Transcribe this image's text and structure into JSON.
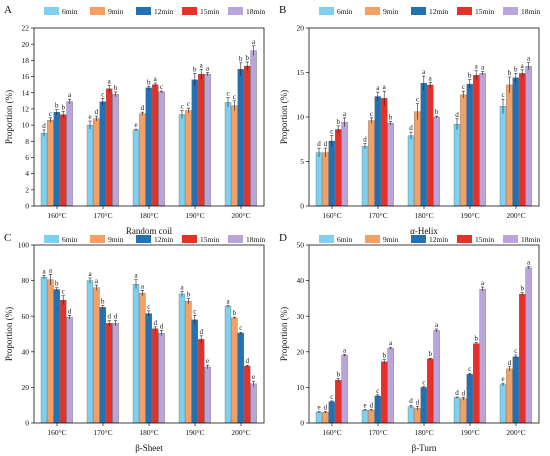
{
  "colors": {
    "6min": "#7fd0ee",
    "9min": "#f4a064",
    "12min": "#2370b3",
    "15min": "#e8302a",
    "18min": "#b9a4dc"
  },
  "chart_data": [
    {
      "type": "bar",
      "panel_label": "A",
      "xlabel": "Random coil",
      "ylabel": "Proportion (%)",
      "ylim": [
        0,
        22
      ],
      "yticks": [
        "0",
        "2",
        "4",
        "6",
        "8",
        "10",
        "12",
        "14",
        "16",
        "18",
        "20",
        "22"
      ],
      "categories": [
        "160°C",
        "170°C",
        "180°C",
        "190°C",
        "200°C"
      ],
      "legend_position": "top",
      "series": [
        {
          "name": "6min",
          "values": [
            9.0,
            10.0,
            9.4,
            11.3,
            12.8
          ],
          "errors": [
            0.4,
            0.5,
            0.1,
            0.5,
            0.6
          ],
          "sig": [
            "d",
            "e",
            "e",
            "c",
            "c"
          ]
        },
        {
          "name": "9min",
          "values": [
            10.6,
            10.8,
            11.4,
            11.8,
            12.4
          ],
          "errors": [
            0.3,
            0.3,
            0.2,
            0.3,
            0.6
          ],
          "sig": [
            "c",
            "d",
            "d",
            "c",
            "c"
          ]
        },
        {
          "name": "12min",
          "values": [
            11.6,
            12.9,
            14.6,
            15.6,
            16.9
          ],
          "errors": [
            0.3,
            0.4,
            0.2,
            0.8,
            0.8
          ],
          "sig": [
            "b",
            "c",
            "b",
            "b",
            "b"
          ]
        },
        {
          "name": "15min",
          "values": [
            11.3,
            14.5,
            15.0,
            16.3,
            17.3
          ],
          "errors": [
            0.4,
            0.4,
            0.2,
            0.6,
            0.5
          ],
          "sig": [
            "b",
            "a",
            "a",
            "a",
            "b"
          ]
        },
        {
          "name": "18min",
          "values": [
            12.9,
            13.8,
            14.1,
            16.3,
            19.2
          ],
          "errors": [
            0.3,
            0.3,
            0.1,
            0.2,
            0.6
          ],
          "sig": [
            "a",
            "b",
            "c",
            "a",
            "a"
          ]
        }
      ]
    },
    {
      "type": "bar",
      "panel_label": "B",
      "xlabel": "α-Helix",
      "ylabel": "Proportion (%)",
      "ylim": [
        0,
        20
      ],
      "yticks": [
        "0",
        "5",
        "10",
        "15",
        "20"
      ],
      "categories": [
        "160°C",
        "170°C",
        "180°C",
        "190°C",
        "200°C"
      ],
      "legend_position": "top",
      "series": [
        {
          "name": "6min",
          "values": [
            6.0,
            6.7,
            7.9,
            9.2,
            11.2
          ],
          "errors": [
            0.5,
            0.3,
            0.4,
            0.6,
            0.8
          ],
          "sig": [
            "d",
            "d",
            "d",
            "d",
            "c"
          ]
        },
        {
          "name": "9min",
          "values": [
            6.0,
            9.6,
            10.6,
            12.5,
            13.6
          ],
          "errors": [
            0.5,
            0.3,
            0.9,
            0.4,
            0.9
          ],
          "sig": [
            "d",
            "c",
            "c",
            "c",
            "b"
          ]
        },
        {
          "name": "12min",
          "values": [
            7.3,
            12.3,
            13.8,
            13.7,
            14.4
          ],
          "errors": [
            0.6,
            0.5,
            0.8,
            0.5,
            0.5
          ],
          "sig": [
            "c",
            "a",
            "a",
            "b",
            "b"
          ]
        },
        {
          "name": "15min",
          "values": [
            8.6,
            12.1,
            13.6,
            14.7,
            14.9
          ],
          "errors": [
            0.4,
            0.8,
            0.3,
            0.5,
            0.4
          ],
          "sig": [
            "b",
            "a",
            "a",
            "a",
            "a"
          ]
        },
        {
          "name": "18min",
          "values": [
            9.4,
            9.3,
            10.0,
            14.9,
            15.7
          ],
          "errors": [
            0.5,
            0.2,
            0.1,
            0.2,
            0.4
          ],
          "sig": [
            "a",
            "b",
            "b",
            "a",
            "a"
          ]
        }
      ]
    },
    {
      "type": "bar",
      "panel_label": "C",
      "xlabel": "β-Sheet",
      "ylabel": "Proportion (%)",
      "ylim": [
        0,
        100
      ],
      "yticks": [
        "0",
        "20",
        "40",
        "60",
        "80",
        "100"
      ],
      "categories": [
        "160°C",
        "170°C",
        "180°C",
        "190°C",
        "200°C"
      ],
      "legend_position": "top",
      "series": [
        {
          "name": "6min",
          "values": [
            82,
            80,
            78,
            72.5,
            65.5
          ],
          "errors": [
            1.0,
            1.5,
            2.5,
            1.5,
            0.5
          ],
          "sig": [
            "a",
            "a",
            "a",
            "a",
            "a"
          ]
        },
        {
          "name": "9min",
          "values": [
            80.5,
            76,
            73,
            68.5,
            59
          ],
          "errors": [
            3.0,
            1.5,
            1.5,
            1.5,
            0.5
          ],
          "sig": [
            "a",
            "a",
            "a",
            "b",
            "b"
          ]
        },
        {
          "name": "12min",
          "values": [
            75,
            65,
            61.5,
            58,
            50.5
          ],
          "errors": [
            1.0,
            1.0,
            1.5,
            2.5,
            0.5
          ],
          "sig": [
            "b",
            "b",
            "c",
            "c",
            "c"
          ]
        },
        {
          "name": "15min",
          "values": [
            69,
            56,
            53,
            47,
            32
          ],
          "errors": [
            2.5,
            1.5,
            1.0,
            2.0,
            0.5
          ],
          "sig": [
            "c",
            "d",
            "d",
            "d",
            "d"
          ]
        },
        {
          "name": "18min",
          "values": [
            59.5,
            56,
            50.5,
            31.5,
            22
          ],
          "errors": [
            1.0,
            1.5,
            1.5,
            1.0,
            1.5
          ],
          "sig": [
            "d",
            "d",
            "d",
            "e",
            "e"
          ]
        }
      ]
    },
    {
      "type": "bar",
      "panel_label": "D",
      "xlabel": "β-Turn",
      "ylabel": "Proportion (%)",
      "ylim": [
        0,
        50
      ],
      "yticks": [
        "0",
        "10",
        "20",
        "30",
        "40",
        "50"
      ],
      "categories": [
        "160°C",
        "170°C",
        "180°C",
        "190°C",
        "200°C"
      ],
      "legend_position": "top",
      "series": [
        {
          "name": "6min",
          "values": [
            3.0,
            3.6,
            4.6,
            7.1,
            10.8
          ],
          "errors": [
            0.2,
            0.2,
            0.4,
            0.2,
            0.4
          ],
          "sig": [
            "e",
            "e",
            "d",
            "d",
            "e"
          ]
        },
        {
          "name": "9min",
          "values": [
            3.0,
            3.6,
            4.1,
            6.8,
            15.2
          ],
          "errors": [
            0.2,
            0.2,
            0.6,
            0.4,
            0.6
          ],
          "sig": [
            "d",
            "d",
            "d",
            "d",
            "d"
          ]
        },
        {
          "name": "12min",
          "values": [
            6.0,
            7.6,
            10.0,
            13.7,
            18.6
          ],
          "errors": [
            0.2,
            0.3,
            0.2,
            0.3,
            0.5
          ],
          "sig": [
            "c",
            "c",
            "c",
            "c",
            "c"
          ]
        },
        {
          "name": "15min",
          "values": [
            12.0,
            17.2,
            18.0,
            22.3,
            36.2
          ],
          "errors": [
            0.5,
            0.6,
            0.2,
            0.3,
            0.4
          ],
          "sig": [
            "b",
            "b",
            "b",
            "b",
            "b"
          ]
        },
        {
          "name": "18min",
          "values": [
            19.0,
            21.0,
            26.0,
            37.6,
            43.6
          ],
          "errors": [
            0.3,
            0.3,
            0.4,
            0.6,
            0.3
          ],
          "sig": [
            "a",
            "a",
            "a",
            "a",
            "a"
          ]
        }
      ]
    }
  ]
}
